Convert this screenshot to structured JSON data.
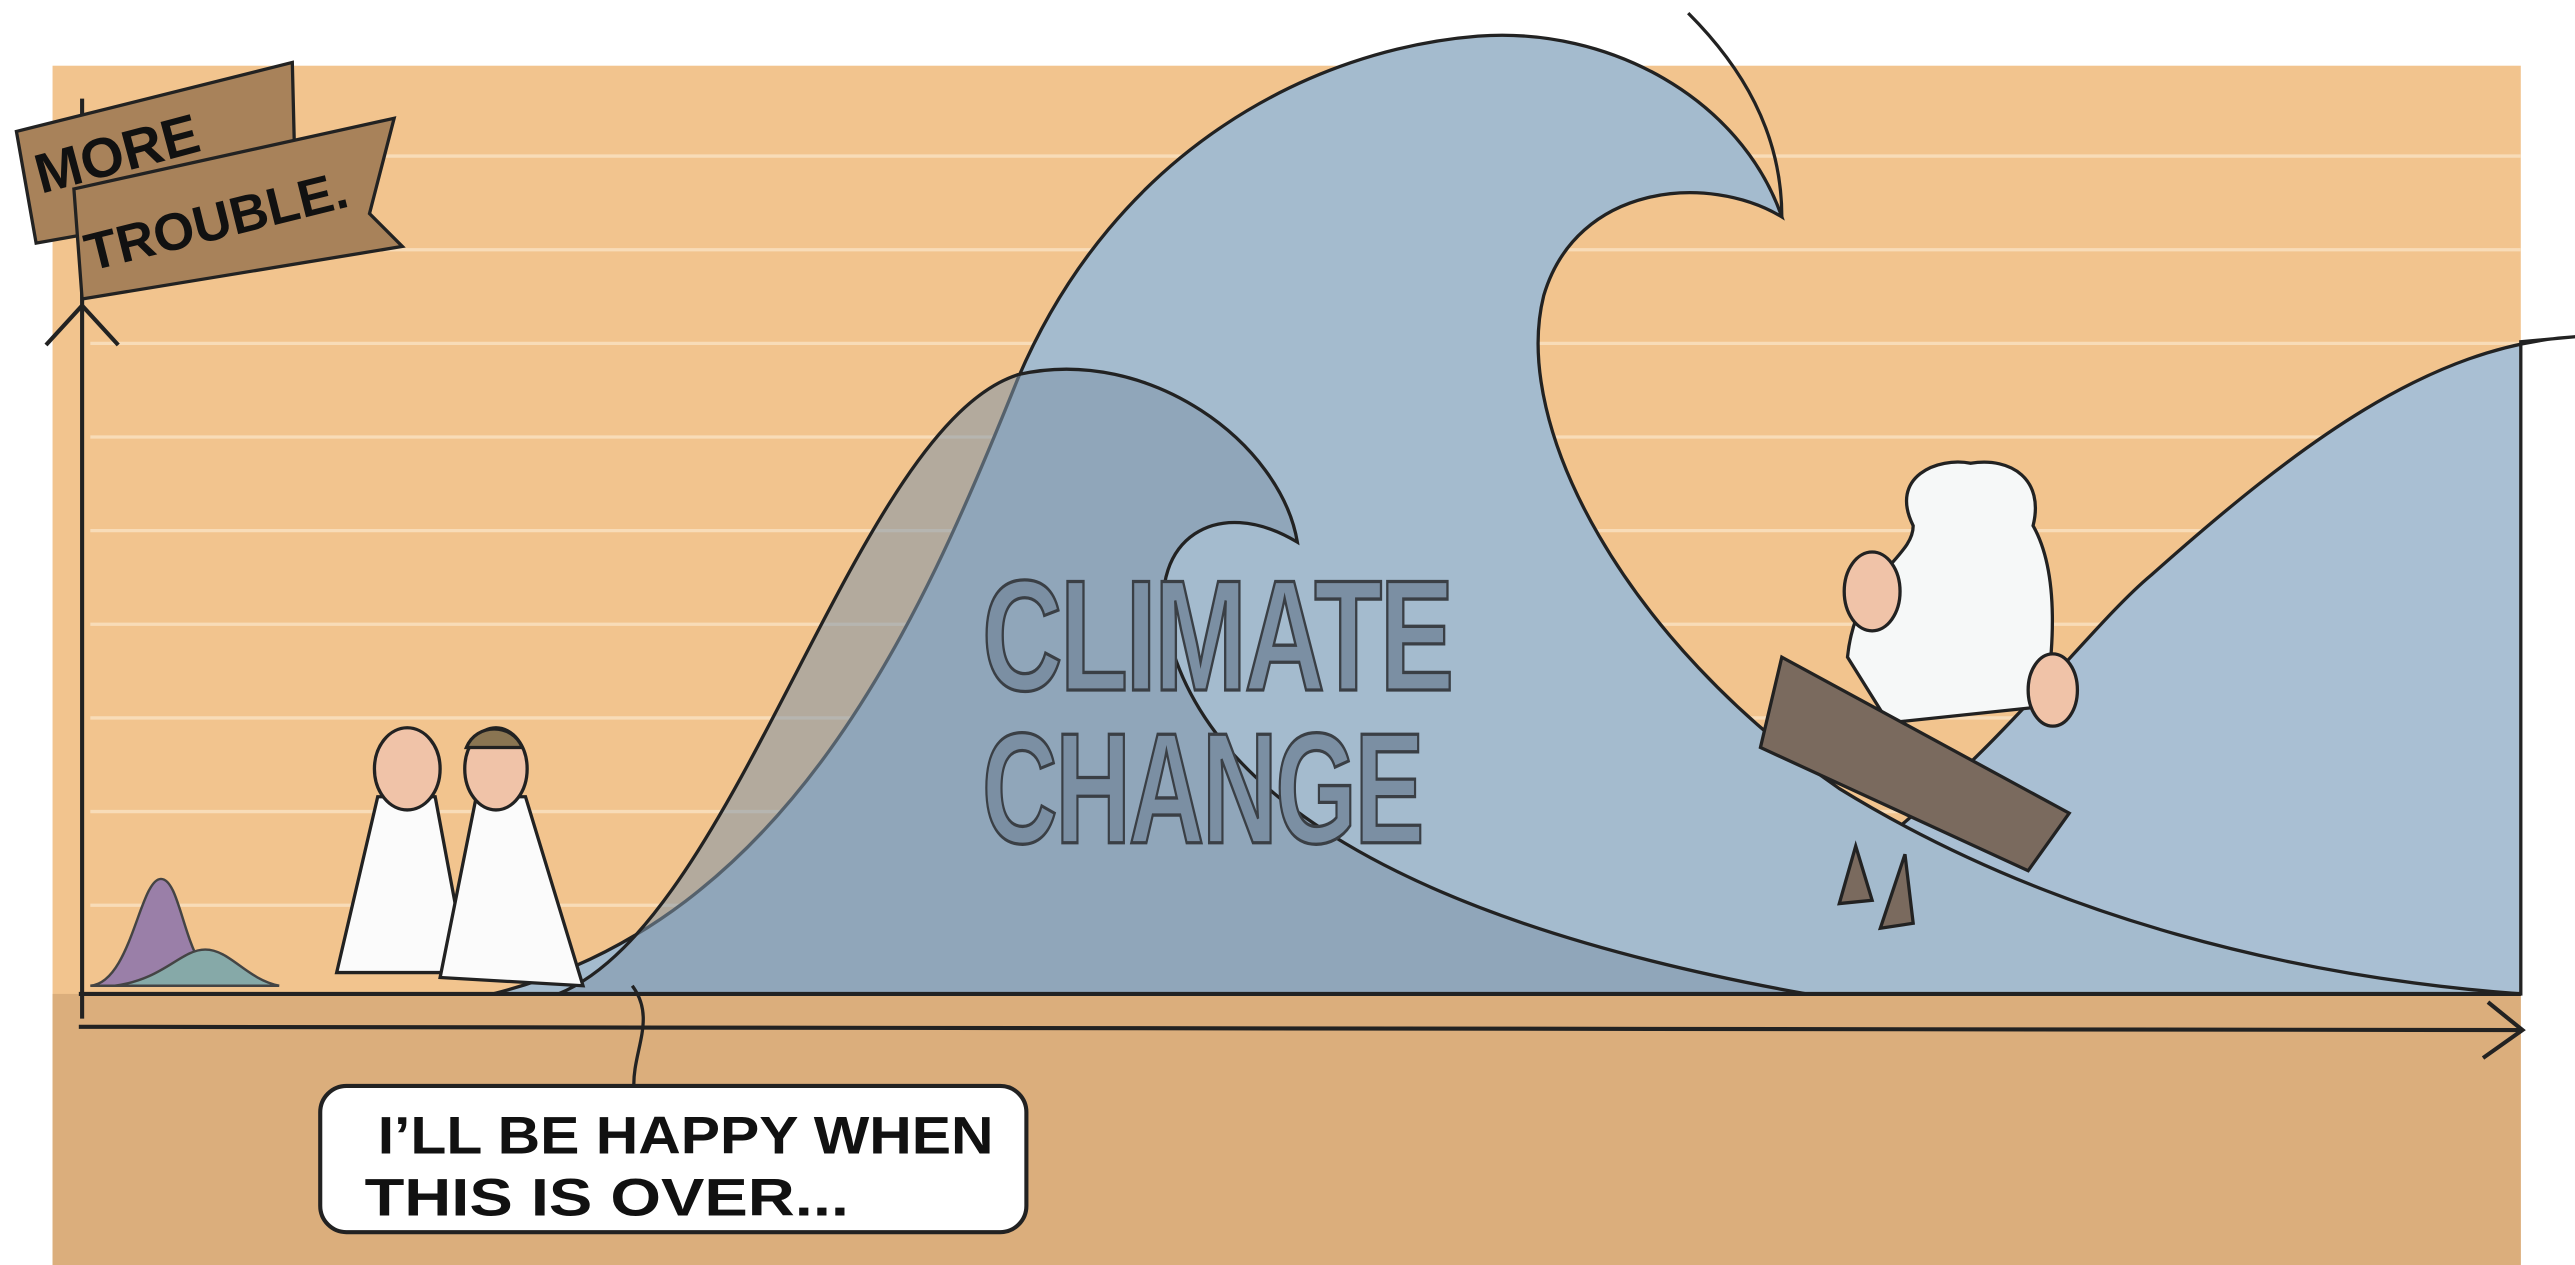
{
  "banner": {
    "lines": [
      "MORE",
      "TROUBLE."
    ]
  },
  "wave_label": {
    "lines": [
      "CLIMATE",
      "CHANGE"
    ]
  },
  "speech_bubble": {
    "lines": [
      "I’LL BE HAPPY WHEN",
      "THIS IS OVER..."
    ]
  }
}
